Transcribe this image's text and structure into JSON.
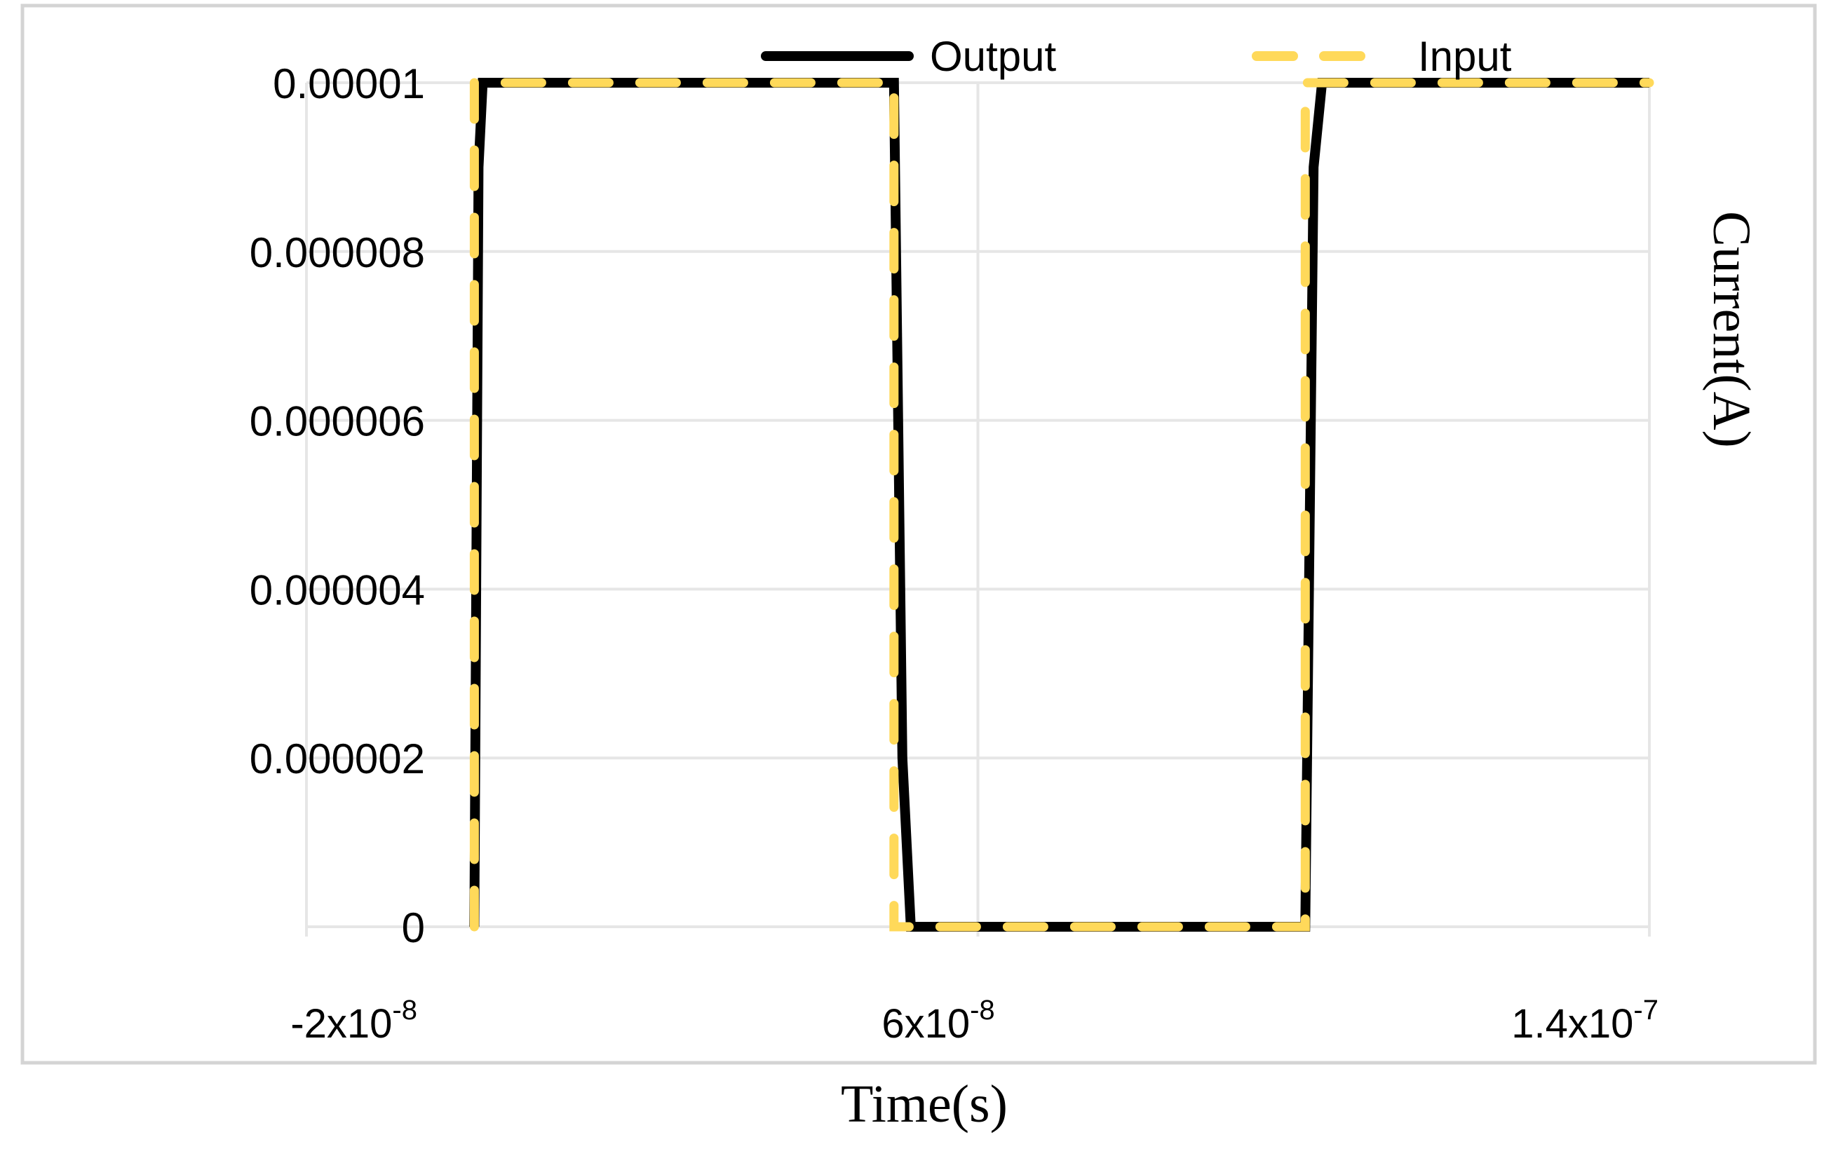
{
  "chart_data": {
    "type": "line",
    "xlabel": "Time(s)",
    "ylabel": "Current(A)",
    "xlim": [
      -2e-08,
      1.4e-07
    ],
    "ylim": [
      0,
      1e-05
    ],
    "x_ticks": [
      {
        "value": -2e-08,
        "mantissa": "-2x10",
        "exponent": "-8"
      },
      {
        "value": 6e-08,
        "mantissa": "6x10",
        "exponent": "-8"
      },
      {
        "value": 1.4e-07,
        "mantissa": "1.4x10",
        "exponent": "-7"
      }
    ],
    "x_gridlines": [
      -2e-08,
      6e-08,
      1.4e-07
    ],
    "y_ticks": [
      {
        "value": 0,
        "label": "0"
      },
      {
        "value": 2e-06,
        "label": "0.000002"
      },
      {
        "value": 4e-06,
        "label": "0.000004"
      },
      {
        "value": 6e-06,
        "label": "0.000006"
      },
      {
        "value": 8e-06,
        "label": "0.000008"
      },
      {
        "value": 1e-05,
        "label": "0.00001"
      }
    ],
    "grid": true,
    "legend_position": "top",
    "series": [
      {
        "name": "Output",
        "color": "#000000",
        "style": "solid",
        "x": [
          0,
          5e-10,
          1e-09,
          5e-08,
          5.1e-08,
          5.2e-08,
          9.9e-08,
          1e-07,
          1.01e-07,
          1.4e-07
        ],
        "y": [
          0,
          9e-06,
          1e-05,
          1e-05,
          2e-06,
          0,
          0,
          9e-06,
          1e-05,
          1e-05
        ]
      },
      {
        "name": "Input",
        "color": "#FFD95A",
        "style": "dashed",
        "x": [
          0,
          0,
          5e-08,
          5e-08,
          9.9e-08,
          9.9e-08,
          1.4e-07
        ],
        "y": [
          0,
          1e-05,
          1e-05,
          0,
          0,
          1e-05,
          1e-05
        ]
      }
    ]
  },
  "colors": {
    "grid": "#E6E6E6",
    "frame": "#D4D4D4",
    "text": "#000000"
  }
}
